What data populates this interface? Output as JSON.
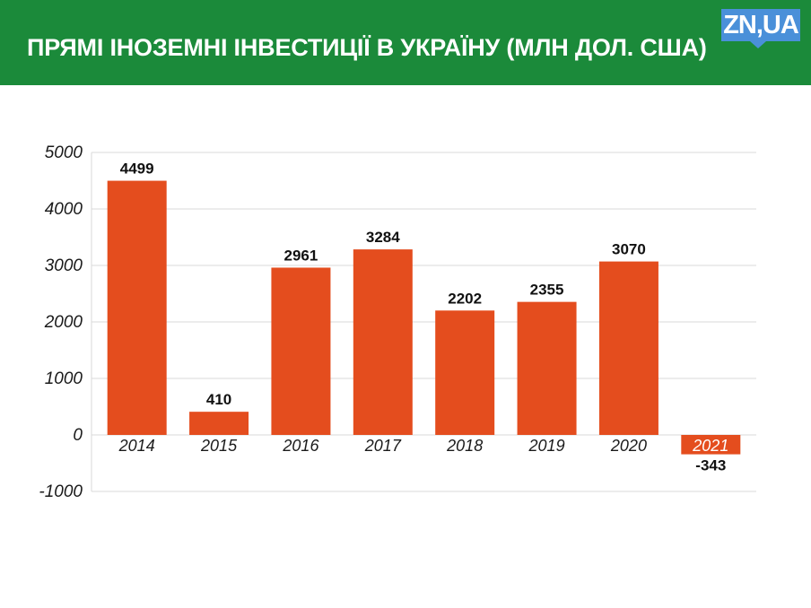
{
  "header": {
    "title": "ПРЯМІ ІНОЗЕМНІ ІНВЕСТИЦІЇ В УКРАЇНУ (МЛН ДОЛ. США)",
    "logo_text": "ZN,UA",
    "background_color": "#1b8a3a",
    "logo_color": "#4a90d9"
  },
  "chart_data": {
    "type": "bar",
    "title": "ПРЯМІ ІНОЗЕМНІ ІНВЕСТИЦІЇ В УКРАЇНУ (МЛН ДОЛ. США)",
    "categories": [
      "2014",
      "2015",
      "2016",
      "2017",
      "2018",
      "2019",
      "2020",
      "2021"
    ],
    "values": [
      4499,
      410,
      2961,
      3284,
      2202,
      2355,
      3070,
      -343
    ],
    "data_labels": [
      "4499",
      "410",
      "2961",
      "3284",
      "2202",
      "2355",
      "3070",
      "-343"
    ],
    "yticks": [
      "5000",
      "4000",
      "3000",
      "2000",
      "1000",
      "0",
      "-1000"
    ],
    "ylim": [
      -1000,
      5000
    ],
    "grid": true,
    "bar_color": "#e44d1e",
    "xlabel": "",
    "ylabel": ""
  }
}
